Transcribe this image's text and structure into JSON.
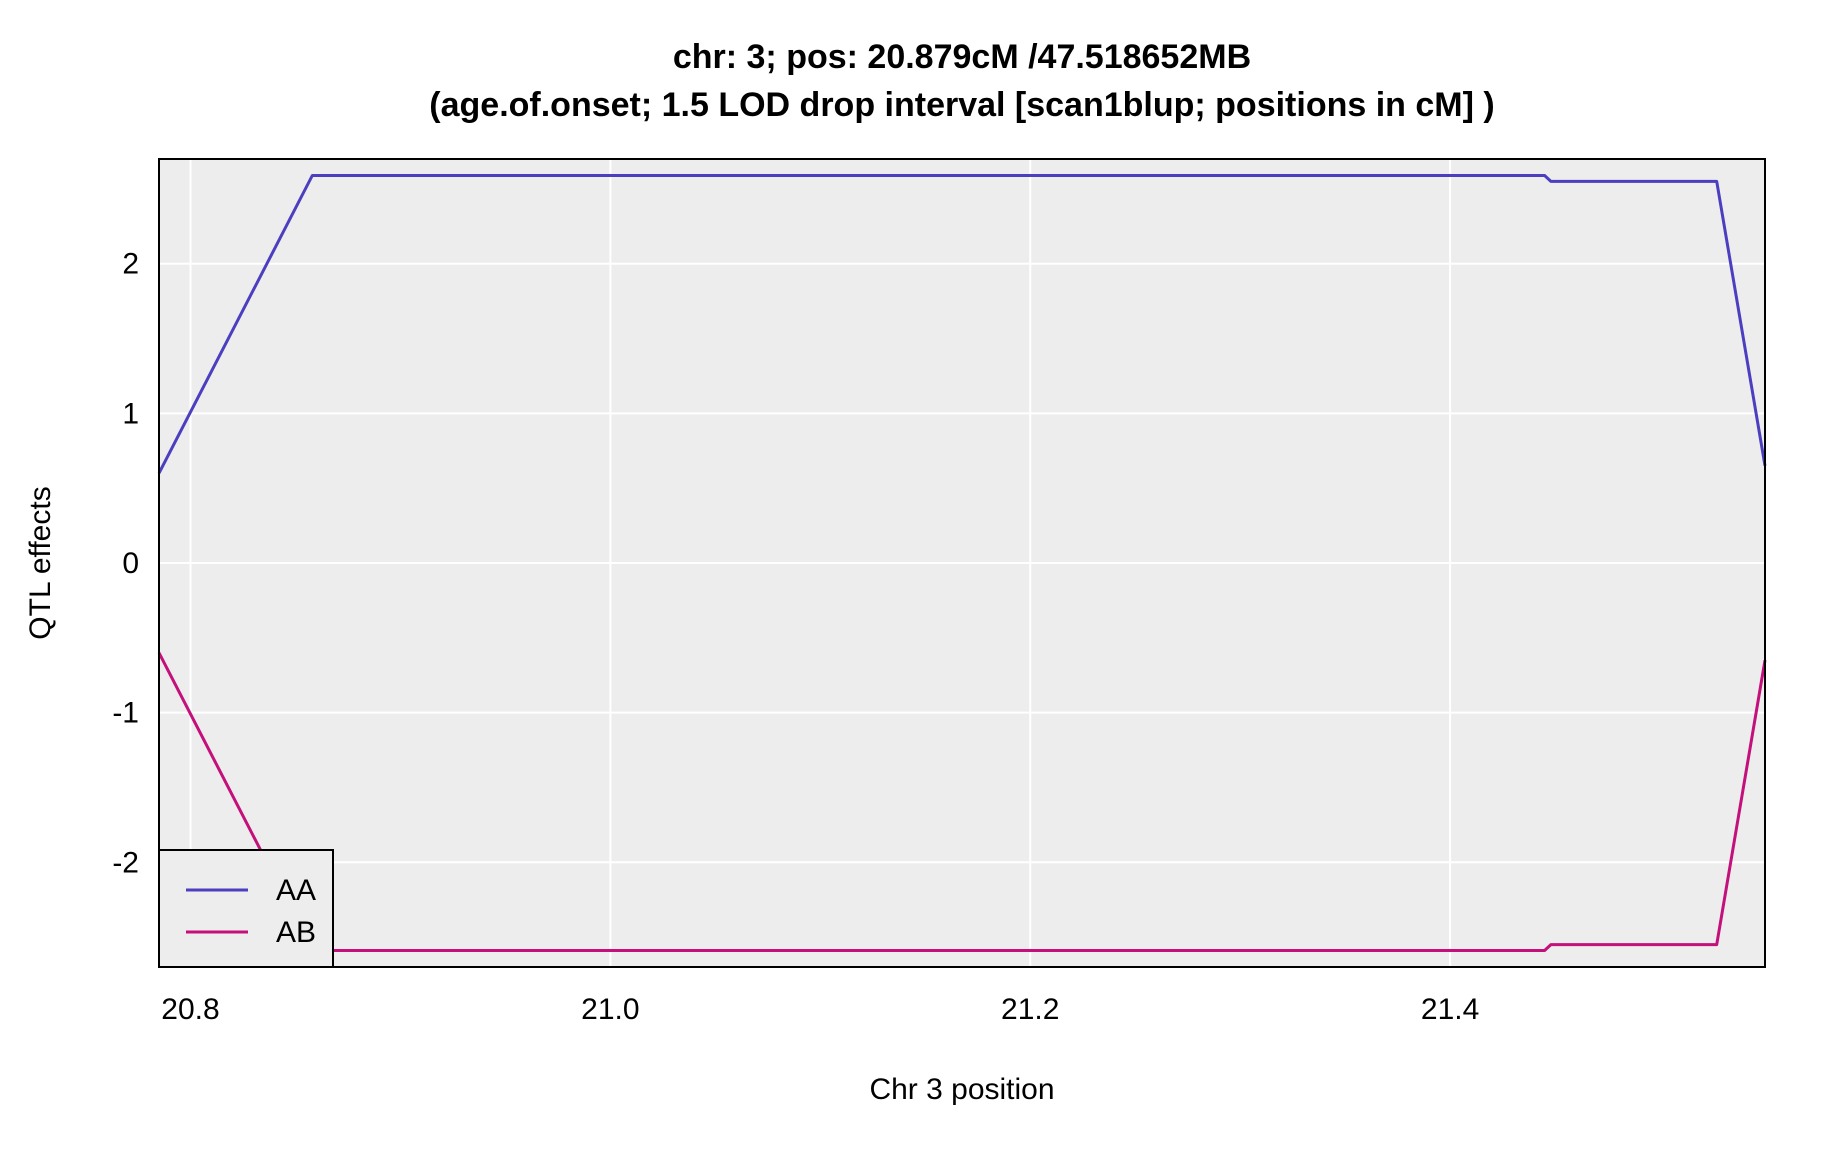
{
  "chart_data": {
    "type": "line",
    "title": "chr: 3; pos: 20.879cM /47.518652MB",
    "subtitle": "(age.of.onset; 1.5 LOD drop interval [scan1blup; positions in cM] )",
    "xlabel": "Chr 3 position",
    "ylabel": "QTL effects",
    "xlim": [
      20.785,
      21.55
    ],
    "ylim": [
      -2.7,
      2.7
    ],
    "xticks": [
      20.8,
      21.0,
      21.2,
      21.4
    ],
    "xtick_labels": [
      "20.8",
      "21.0",
      "21.2",
      "21.4"
    ],
    "yticks": [
      -2,
      -1,
      0,
      1,
      2
    ],
    "ytick_labels": [
      "-2",
      "-1",
      "0",
      "1",
      "2"
    ],
    "grid": true,
    "background": "#ededed",
    "legend_position": "bottom-left",
    "series": [
      {
        "name": "AA",
        "color": "#4b3fc0",
        "x": [
          20.785,
          20.858,
          21.445,
          21.448,
          21.527,
          21.55
        ],
        "y": [
          0.6,
          2.59,
          2.59,
          2.55,
          2.55,
          0.65
        ]
      },
      {
        "name": "AB",
        "color": "#c4107a",
        "x": [
          20.785,
          20.858,
          21.445,
          21.448,
          21.527,
          21.55
        ],
        "y": [
          -0.6,
          -2.59,
          -2.59,
          -2.55,
          -2.55,
          -0.65
        ]
      }
    ]
  }
}
